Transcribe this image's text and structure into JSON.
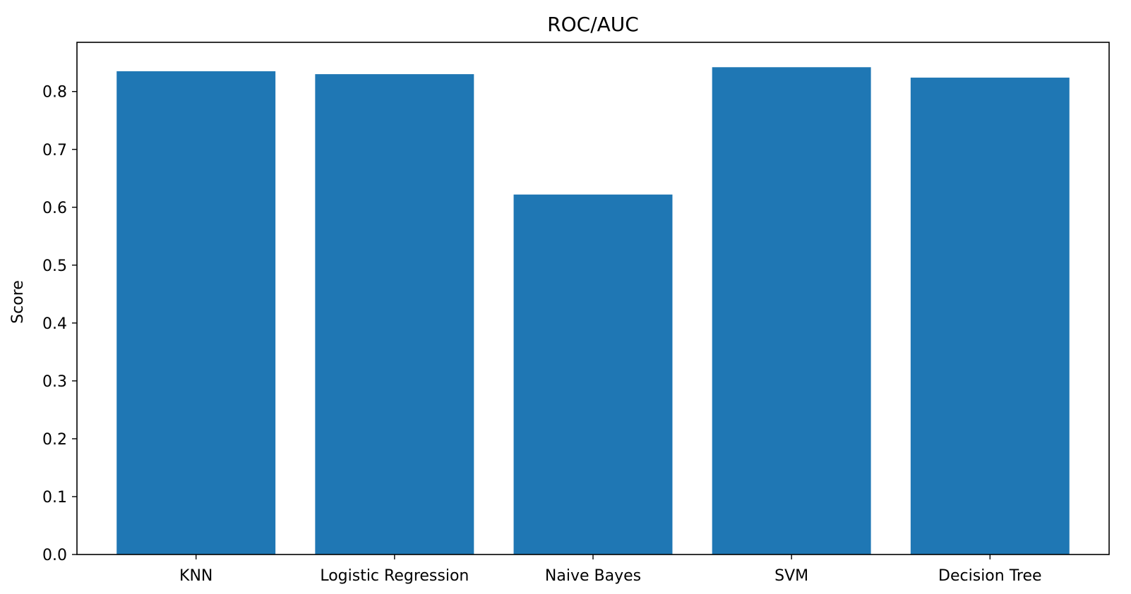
{
  "chart_data": {
    "type": "bar",
    "title": "ROC/AUC",
    "xlabel": "",
    "ylabel": "Score",
    "categories": [
      "KNN",
      "Logistic Regression",
      "Naive Bayes",
      "SVM",
      "Decision Tree"
    ],
    "values": [
      0.835,
      0.83,
      0.622,
      0.842,
      0.824
    ],
    "ylim": [
      0,
      0.885
    ],
    "yticks": [
      "0.0",
      "0.1",
      "0.2",
      "0.3",
      "0.4",
      "0.5",
      "0.6",
      "0.7",
      "0.8"
    ],
    "grid": false,
    "legend": "none",
    "bar_color": "#1f77b4"
  }
}
